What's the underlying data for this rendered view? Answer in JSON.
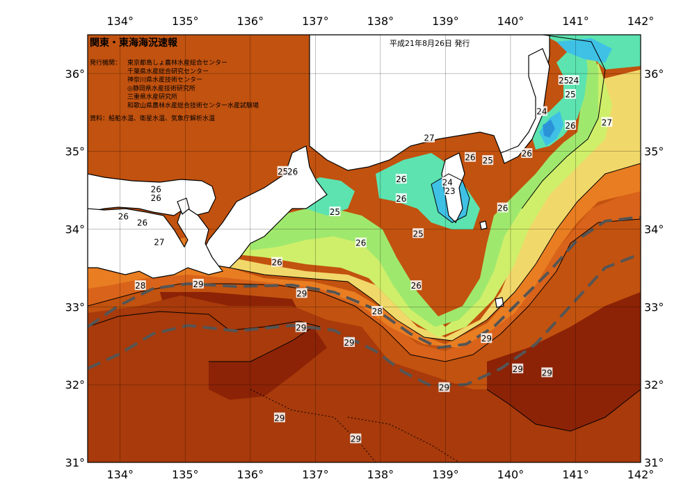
{
  "header": {
    "title": "関東・東海海況速報",
    "date": "平成21年8月26日 発行",
    "issuer_label": "発行機関：",
    "issuers": [
      "東京都島しょ農林水産総合センター",
      "千葉県水産総合研究センター",
      "神奈川県水産技術センター",
      "◎静岡県水産技術研究所",
      "三重県水産研究所",
      "和歌山県農林水産総合技術センター水産試験場"
    ],
    "source": "資料：船舶水温、衛星水温、気象庁解析水温"
  },
  "axes": {
    "lon_labels": [
      "134°",
      "135°",
      "136°",
      "137°",
      "138°",
      "139°",
      "140°",
      "141°",
      "142°"
    ],
    "lat_labels": [
      "36°",
      "35°",
      "34°",
      "33°",
      "32°",
      "31°"
    ],
    "lon_range": [
      133.5,
      142
    ],
    "lat_range": [
      31,
      36.5
    ]
  },
  "contour_labels": [
    {
      "text": "25",
      "lon": 140.82,
      "lat": 35.91
    },
    {
      "text": "24",
      "lon": 140.97,
      "lat": 35.91
    },
    {
      "text": "25",
      "lon": 140.92,
      "lat": 35.73
    },
    {
      "text": "24",
      "lon": 140.48,
      "lat": 35.51
    },
    {
      "text": "26",
      "lon": 140.92,
      "lat": 35.33
    },
    {
      "text": "27",
      "lon": 141.48,
      "lat": 35.37
    },
    {
      "text": "27",
      "lon": 138.75,
      "lat": 35.17
    },
    {
      "text": "26",
      "lon": 140.25,
      "lat": 34.97
    },
    {
      "text": "26",
      "lon": 139.38,
      "lat": 34.92
    },
    {
      "text": "25",
      "lon": 139.65,
      "lat": 34.88
    },
    {
      "text": "26",
      "lon": 136.65,
      "lat": 34.72
    },
    {
      "text": "25",
      "lon": 136.5,
      "lat": 34.74
    },
    {
      "text": "26",
      "lon": 136.65,
      "lat": 34.74
    },
    {
      "text": "26",
      "lon": 138.32,
      "lat": 34.64
    },
    {
      "text": "24",
      "lon": 139.03,
      "lat": 34.6
    },
    {
      "text": "23",
      "lon": 139.07,
      "lat": 34.49
    },
    {
      "text": "26",
      "lon": 134.55,
      "lat": 34.51
    },
    {
      "text": "26",
      "lon": 134.55,
      "lat": 34.4
    },
    {
      "text": "26",
      "lon": 138.32,
      "lat": 34.39
    },
    {
      "text": "26",
      "lon": 139.88,
      "lat": 34.27
    },
    {
      "text": "25",
      "lon": 137.3,
      "lat": 34.22
    },
    {
      "text": "26",
      "lon": 134.05,
      "lat": 34.16
    },
    {
      "text": "26",
      "lon": 134.34,
      "lat": 34.08
    },
    {
      "text": "25",
      "lon": 138.58,
      "lat": 33.94
    },
    {
      "text": "27",
      "lon": 134.6,
      "lat": 33.83
    },
    {
      "text": "26",
      "lon": 137.7,
      "lat": 33.82
    },
    {
      "text": "26",
      "lon": 136.41,
      "lat": 33.57
    },
    {
      "text": "29",
      "lon": 135.2,
      "lat": 33.29
    },
    {
      "text": "28",
      "lon": 134.31,
      "lat": 33.27
    },
    {
      "text": "26",
      "lon": 138.55,
      "lat": 33.27
    },
    {
      "text": "29",
      "lon": 136.79,
      "lat": 33.17
    },
    {
      "text": "28",
      "lon": 137.95,
      "lat": 32.94
    },
    {
      "text": "29",
      "lon": 136.78,
      "lat": 32.73
    },
    {
      "text": "29",
      "lon": 139.63,
      "lat": 32.59
    },
    {
      "text": "29",
      "lon": 137.52,
      "lat": 32.54
    },
    {
      "text": "29",
      "lon": 140.11,
      "lat": 32.2
    },
    {
      "text": "29",
      "lon": 140.56,
      "lat": 32.15
    },
    {
      "text": "29",
      "lon": 138.98,
      "lat": 31.96
    },
    {
      "text": "29",
      "lon": 136.45,
      "lat": 31.57
    },
    {
      "text": "29",
      "lon": 137.62,
      "lat": 31.3
    }
  ],
  "colors": {
    "c23": "#2a93d8",
    "c24": "#3fc1e6",
    "c25": "#5ce3b0",
    "c26": "#9fe86e",
    "c26b": "#cfef6a",
    "c27": "#f1d86a",
    "c27b": "#f3b548",
    "c28": "#e97d22",
    "c28b": "#d9631a",
    "c29": "#c2520f",
    "c29b": "#a83a0b",
    "c30": "#8c2306",
    "land": "#ffffff",
    "current": "#555555"
  }
}
